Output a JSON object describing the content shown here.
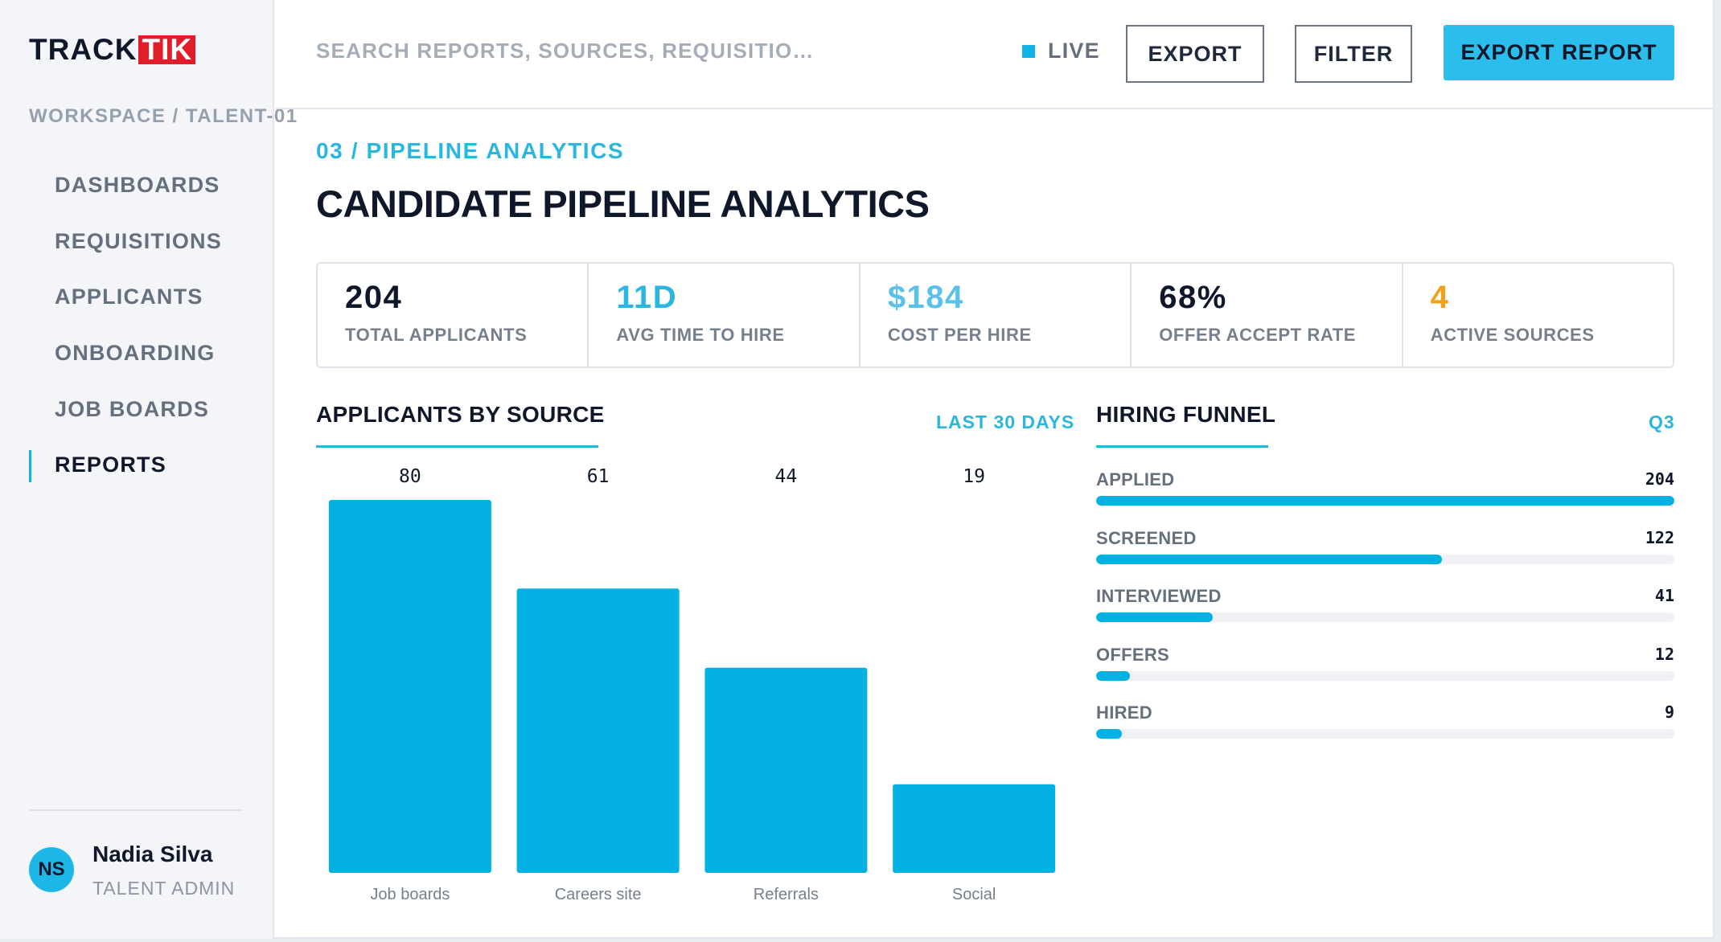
{
  "brand": {
    "part1": "TRACK",
    "part2": "TIK",
    "accent": "#e11d2a"
  },
  "sidebar": {
    "workspace": "WORKSPACE / TALENT-01",
    "items": [
      {
        "label": "DASHBOARDS",
        "active": false
      },
      {
        "label": "REQUISITIONS",
        "active": false
      },
      {
        "label": "APPLICANTS",
        "active": false
      },
      {
        "label": "ONBOARDING",
        "active": false
      },
      {
        "label": "JOB BOARDS",
        "active": false
      },
      {
        "label": "REPORTS",
        "active": true
      }
    ],
    "user": {
      "initials": "NS",
      "name": "Nadia Silva",
      "role": "TALENT ADMIN"
    }
  },
  "topbar": {
    "search_placeholder": "SEARCH REPORTS, SOURCES, REQUISITIONS",
    "live_label": "LIVE",
    "export_label": "EXPORT",
    "filter_label": "FILTER",
    "export_report_label": "EXPORT REPORT"
  },
  "page": {
    "eyebrow": "03 / PIPELINE ANALYTICS",
    "title": "CANDIDATE PIPELINE ANALYTICS"
  },
  "kpis": [
    {
      "value": "204",
      "label": "TOTAL APPLICANTS",
      "color": "#0f172a"
    },
    {
      "value": "11D",
      "label": "AVG TIME TO HIRE",
      "color": "#2bb6e2"
    },
    {
      "value": "$184",
      "label": "COST PER HIRE",
      "color": "#5ac2ea"
    },
    {
      "value": "68%",
      "label": "OFFER ACCEPT RATE",
      "color": "#0f172a"
    },
    {
      "value": "4",
      "label": "ACTIVE SOURCES",
      "color": "#f0a21a"
    }
  ],
  "sources_panel": {
    "title": "APPLICANTS BY SOURCE",
    "range": "LAST 30 DAYS"
  },
  "funnel_panel": {
    "title": "HIRING FUNNEL",
    "period": "Q3",
    "max": 204,
    "stages": [
      {
        "label": "APPLIED",
        "value": 204
      },
      {
        "label": "SCREENED",
        "value": 122
      },
      {
        "label": "INTERVIEWED",
        "value": 41
      },
      {
        "label": "OFFERS",
        "value": 12
      },
      {
        "label": "HIRED",
        "value": 9
      }
    ]
  },
  "colors": {
    "accent": "#2bbdeb",
    "bar": "#03b2e3",
    "track": "#eff1f5"
  },
  "chart_data": [
    {
      "type": "bar",
      "title": "APPLICANTS BY SOURCE",
      "categories": [
        "Job boards",
        "Careers site",
        "Referrals",
        "Social"
      ],
      "values": [
        80,
        61,
        44,
        19
      ],
      "ylim": [
        0,
        80
      ],
      "grid": false
    }
  ]
}
